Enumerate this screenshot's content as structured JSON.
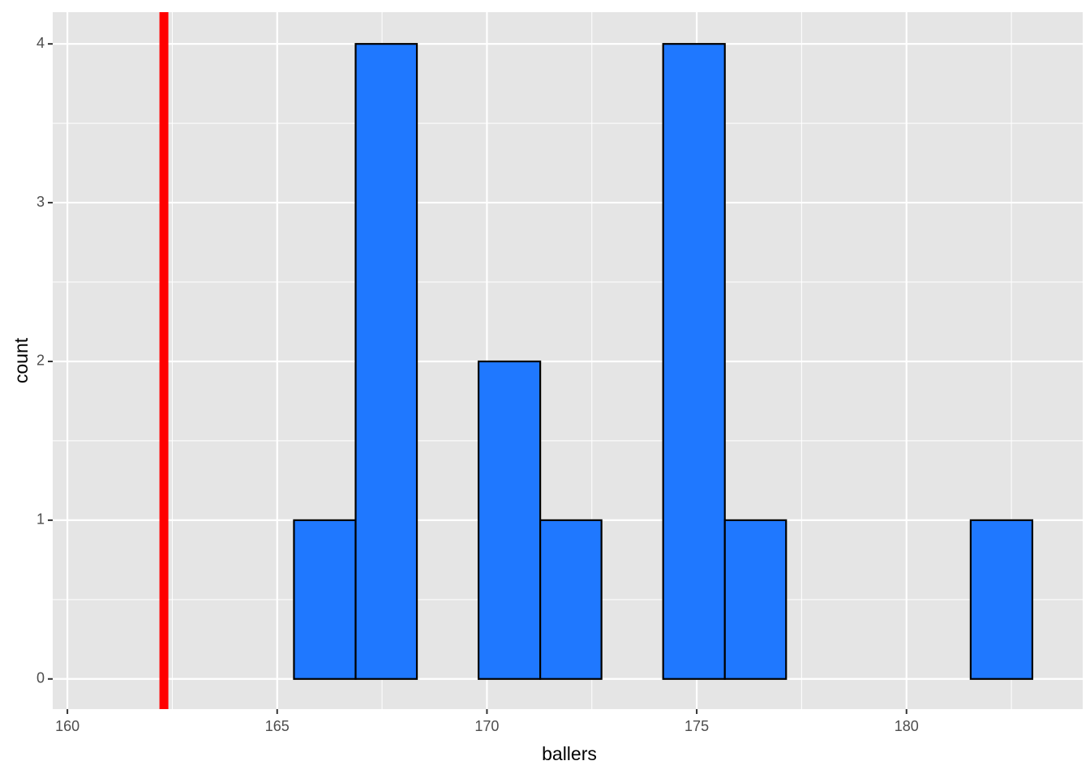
{
  "chart_data": {
    "type": "histogram",
    "x_label": "ballers",
    "y_label": "count",
    "bins": [
      161,
      162.47,
      163.93,
      165.4,
      166.87,
      168.33,
      169.8,
      171.27,
      172.73,
      174.2,
      175.67,
      177.13,
      178.6,
      180.07,
      181.53,
      183
    ],
    "values": [
      0,
      0,
      0,
      1,
      4,
      0,
      2,
      1,
      0,
      4,
      1,
      0,
      0,
      0,
      1
    ],
    "color": "#1f78ff",
    "edge_color": "#000000",
    "vline": {
      "x": 162.3,
      "color": "#ff0000"
    },
    "xlim": [
      159.65,
      184.2
    ],
    "ylim": [
      -0.19,
      4.2
    ],
    "xticks": [
      160,
      165,
      170,
      175,
      180
    ],
    "yticks": [
      0,
      1,
      2,
      3,
      4
    ],
    "x_minor_ticks": [
      162.5,
      167.5,
      172.5,
      177.5,
      182.5
    ],
    "y_minor_ticks": [
      0.5,
      1.5,
      2.5,
      3.5
    ],
    "grid": true,
    "panel_color": "#e5e5e5"
  }
}
